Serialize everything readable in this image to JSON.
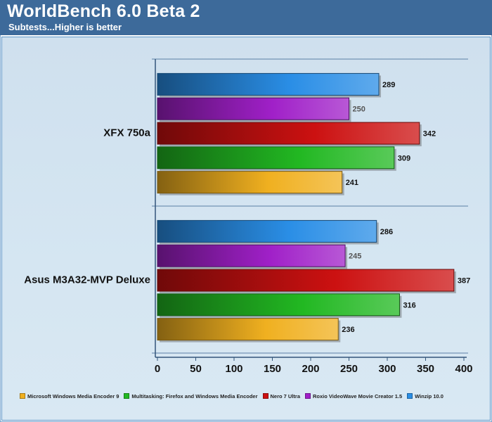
{
  "header": {
    "title": "WorldBench 6.0 Beta 2",
    "subtitle": "Subtests...Higher is better"
  },
  "chart_data": {
    "type": "bar",
    "orientation": "horizontal",
    "categories": [
      "XFX 750a",
      "Asus M3A32-MVP Deluxe"
    ],
    "series": [
      {
        "name": "Microsoft Windows Media Encoder 9",
        "values": [
          241,
          236
        ],
        "color": "#f0b020"
      },
      {
        "name": "Multitasking: Firefox and Windows Media Encoder",
        "values": [
          309,
          316
        ],
        "color": "#22b822"
      },
      {
        "name": "Nero 7 Ultra",
        "values": [
          342,
          387
        ],
        "color": "#cc1111"
      },
      {
        "name": "Roxio VideoWave Movie Creator 1.5",
        "values": [
          250,
          245
        ],
        "color": "#a020c8"
      },
      {
        "name": "Winzip 10.0",
        "values": [
          289,
          286
        ],
        "color": "#2a8ee6"
      }
    ],
    "xlim": [
      0,
      400
    ],
    "xticks": [
      0,
      50,
      100,
      150,
      200,
      250,
      300,
      350,
      400
    ],
    "legend_position": "bottom",
    "gridlines": false
  }
}
